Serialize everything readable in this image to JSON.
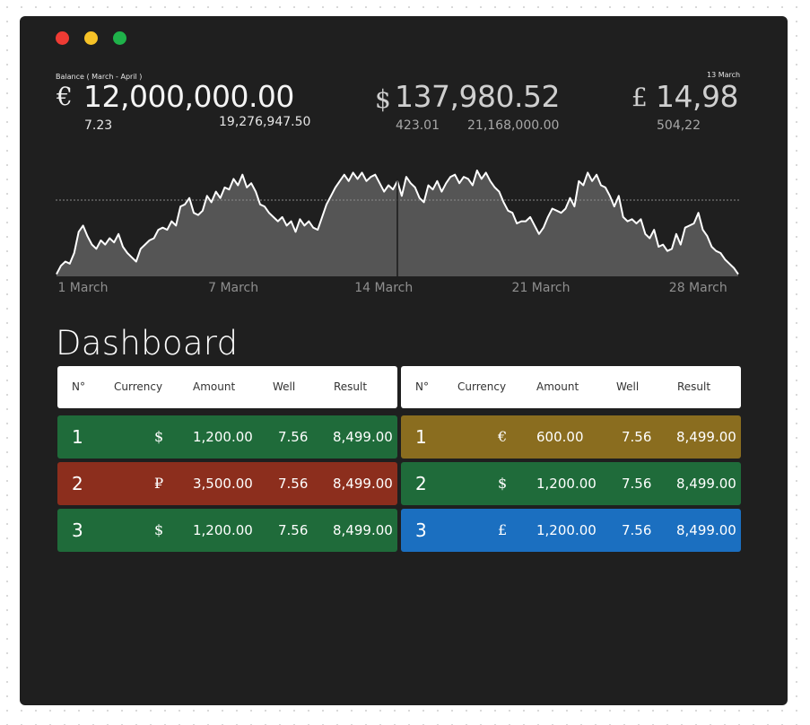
{
  "window": {
    "controls": [
      {
        "name": "close",
        "color": "#ee3b34"
      },
      {
        "name": "minimize",
        "color": "#f6c227"
      },
      {
        "name": "maximize",
        "color": "#1fb24a"
      }
    ]
  },
  "kpis": {
    "left": {
      "label": "Balance ( March - April )",
      "symbol": "€",
      "value": "12,000,000.00",
      "sub1": "7.23",
      "sub2": "19,276,947.50"
    },
    "center": {
      "symbol": "$",
      "value": "137,980.52",
      "sub1": "423.01",
      "sub2": "21,168,000.00"
    },
    "right": {
      "label": "13 March",
      "symbol": "£",
      "value": "14,98",
      "sub1": "504,22"
    }
  },
  "chart_data": {
    "type": "area",
    "x_labels": [
      "1 March",
      "7 March",
      "14 March",
      "21 March",
      "28 March"
    ],
    "values": [
      2,
      10,
      14,
      12,
      22,
      42,
      48,
      38,
      30,
      26,
      34,
      30,
      36,
      32,
      40,
      28,
      22,
      18,
      14,
      26,
      30,
      34,
      36,
      44,
      46,
      44,
      52,
      48,
      66,
      68,
      74,
      60,
      58,
      62,
      76,
      70,
      80,
      74,
      84,
      82,
      92,
      86,
      96,
      84,
      88,
      80,
      68,
      66,
      60,
      56,
      52,
      56,
      48,
      52,
      42,
      54,
      48,
      52,
      46,
      44,
      56,
      68,
      76,
      84,
      90,
      96,
      90,
      98,
      92,
      98,
      90,
      94,
      96,
      88,
      80,
      86,
      82,
      90,
      76,
      94,
      88,
      84,
      74,
      70,
      86,
      82,
      90,
      80,
      88,
      94,
      96,
      88,
      94,
      92,
      86,
      100,
      92,
      98,
      90,
      84,
      80,
      70,
      62,
      60,
      50,
      52,
      52,
      56,
      48,
      40,
      46,
      56,
      64,
      62,
      60,
      64,
      74,
      66,
      90,
      86,
      98,
      90,
      96,
      86,
      84,
      76,
      66,
      76,
      56,
      52,
      54,
      50,
      54,
      40,
      36,
      44,
      28,
      30,
      24,
      26,
      40,
      30,
      46,
      48,
      50,
      60,
      44,
      38,
      28,
      24,
      22,
      16,
      12,
      8,
      2
    ],
    "ylim": [
      0,
      100
    ],
    "reference_line": 72,
    "marker_x_fraction": 0.5,
    "colors": {
      "fill": "#555555",
      "line": "#ffffff",
      "grid": "#8a8a8a"
    }
  },
  "dashboard": {
    "title": "Dashboard",
    "left_table": {
      "headers": [
        "N°",
        "Currency",
        "Amount",
        "Well",
        "Result"
      ],
      "rows": [
        {
          "num": "1",
          "currency": "$",
          "amount": "1,200.00",
          "well": "7.56",
          "result": "8,499.00",
          "color": "#1f6b3a"
        },
        {
          "num": "2",
          "currency": "₽",
          "amount": "3,500.00",
          "well": "7.56",
          "result": "8,499.00",
          "color": "#8c2e1d"
        },
        {
          "num": "3",
          "currency": "$",
          "amount": "1,200.00",
          "well": "7.56",
          "result": "8,499.00",
          "color": "#1f6b3a"
        }
      ]
    },
    "right_table": {
      "headers": [
        "N°",
        "Currency",
        "Amount",
        "Well",
        "Result"
      ],
      "rows": [
        {
          "num": "1",
          "currency": "€",
          "amount": "600.00",
          "well": "7.56",
          "result": "8,499.00",
          "color": "#8a6d1f"
        },
        {
          "num": "2",
          "currency": "$",
          "amount": "1,200.00",
          "well": "7.56",
          "result": "8,499.00",
          "color": "#1f6b3a"
        },
        {
          "num": "3",
          "currency": "£",
          "amount": "1,200.00",
          "well": "7.56",
          "result": "8,499.00",
          "color": "#1b6fc0"
        }
      ]
    }
  }
}
